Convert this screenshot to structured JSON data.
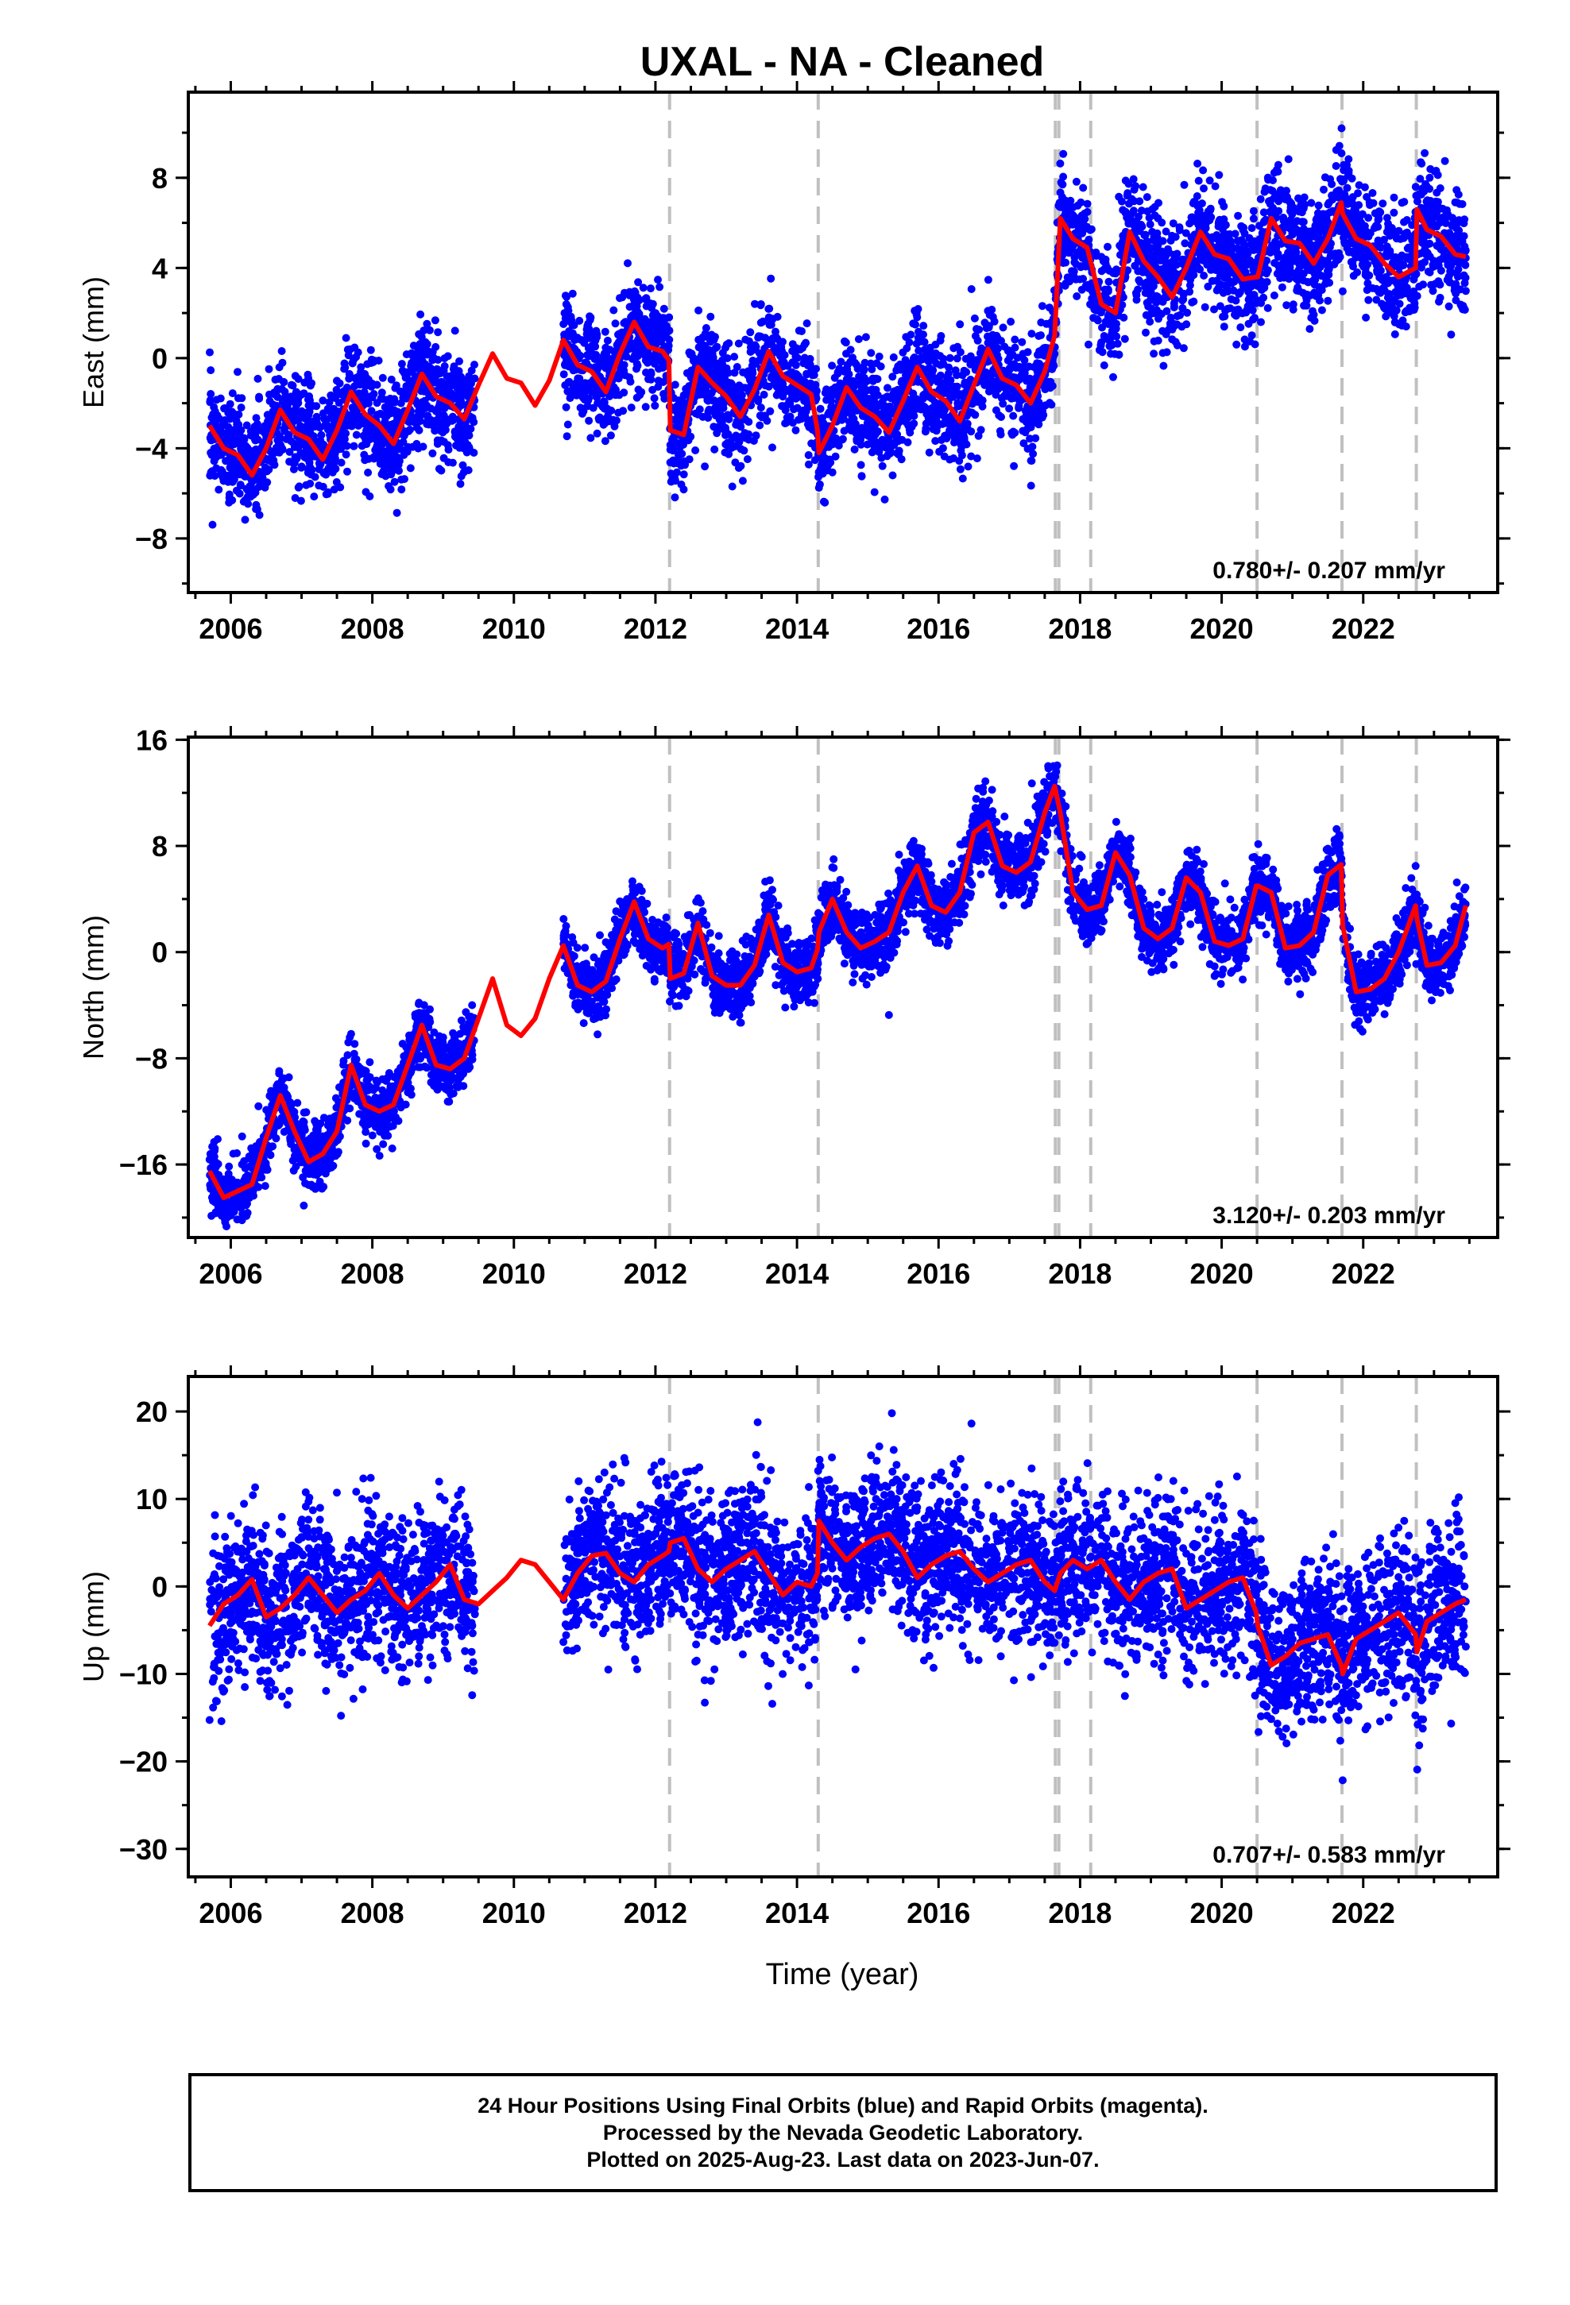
{
  "title": "UXAL  - NA - Cleaned",
  "xlabel": "Time (year)",
  "caption": [
    "24 Hour Positions Using Final Orbits (blue) and Rapid Orbits (magenta).",
    "Processed by the Nevada Geodetic Laboratory.",
    "Plotted on 2025-Aug-23. Last data on 2023-Jun-07."
  ],
  "colors": {
    "points": "#0000ff",
    "model": "#ff0000",
    "steps": "#c0c0c0",
    "axes": "#000000"
  },
  "chart_data": [
    {
      "type": "scatter",
      "ylabel": "East (mm)",
      "xlim": [
        2005.4,
        2023.9
      ],
      "ylim": [
        -10.4,
        11.8
      ],
      "xticks": [
        2006,
        2008,
        2010,
        2012,
        2014,
        2016,
        2018,
        2020,
        2022
      ],
      "yticks": [
        -8,
        -4,
        0,
        4,
        8
      ],
      "rate_label": "0.780+/- 0.207 mm/yr",
      "step_lines": [
        2012.2,
        2014.3,
        2017.65,
        2017.7,
        2018.15,
        2020.5,
        2021.7,
        2022.75
      ],
      "model_curve": {
        "name": "model",
        "x": [
          2005.7,
          2005.9,
          2006.1,
          2006.3,
          2006.5,
          2006.7,
          2006.9,
          2007.1,
          2007.3,
          2007.5,
          2007.7,
          2007.9,
          2008.1,
          2008.3,
          2008.5,
          2008.7,
          2008.9,
          2009.1,
          2009.3,
          2009.5,
          2009.7,
          2009.9,
          2010.1,
          2010.3,
          2010.5,
          2010.7,
          2010.9,
          2011.1,
          2011.3,
          2011.5,
          2011.7,
          2011.9,
          2012.1,
          2012.19,
          2012.21,
          2012.4,
          2012.6,
          2012.8,
          2013.0,
          2013.2,
          2013.4,
          2013.6,
          2013.8,
          2014.0,
          2014.2,
          2014.29,
          2014.31,
          2014.5,
          2014.7,
          2014.9,
          2015.1,
          2015.3,
          2015.5,
          2015.7,
          2015.9,
          2016.1,
          2016.3,
          2016.5,
          2016.7,
          2016.9,
          2017.1,
          2017.3,
          2017.5,
          2017.64,
          2017.72,
          2017.9,
          2018.1,
          2018.3,
          2018.5,
          2018.7,
          2018.9,
          2019.1,
          2019.3,
          2019.5,
          2019.7,
          2019.9,
          2020.1,
          2020.3,
          2020.49,
          2020.51,
          2020.7,
          2020.9,
          2021.1,
          2021.3,
          2021.5,
          2021.69,
          2021.71,
          2021.9,
          2022.1,
          2022.3,
          2022.5,
          2022.74,
          2022.76,
          2022.9,
          2023.1,
          2023.3,
          2023.45
        ],
        "y": [
          -3.0,
          -4.0,
          -4.3,
          -5.2,
          -4.0,
          -2.3,
          -3.3,
          -3.6,
          -4.5,
          -3.2,
          -1.5,
          -2.5,
          -3.0,
          -3.8,
          -2.3,
          -0.7,
          -1.7,
          -2.0,
          -2.7,
          -1.2,
          0.2,
          -0.9,
          -1.1,
          -2.1,
          -1.0,
          0.8,
          -0.3,
          -0.6,
          -1.5,
          0.2,
          1.6,
          0.5,
          0.3,
          -0.1,
          -3.2,
          -3.4,
          -0.4,
          -1.1,
          -1.7,
          -2.6,
          -1.4,
          0.3,
          -0.8,
          -1.2,
          -1.6,
          -3.2,
          -4.2,
          -3.0,
          -1.3,
          -2.2,
          -2.6,
          -3.3,
          -1.9,
          -0.4,
          -1.5,
          -1.9,
          -2.8,
          -1.2,
          0.4,
          -0.9,
          -1.2,
          -2.0,
          -0.6,
          1.0,
          6.2,
          5.3,
          4.9,
          2.4,
          2.0,
          5.6,
          4.3,
          3.6,
          2.7,
          4.0,
          5.6,
          4.6,
          4.4,
          3.5,
          3.6,
          3.6,
          6.2,
          5.2,
          5.1,
          4.2,
          5.3,
          6.9,
          6.4,
          5.3,
          5.0,
          4.2,
          3.6,
          4.0,
          6.6,
          5.7,
          5.4,
          4.6,
          4.5
        ]
      },
      "data_blocks": [
        {
          "x": [
            2005.7,
            2009.45
          ],
          "y_at_start": -3.6,
          "y_at_end": -1.3,
          "amplitude": 1.1,
          "spread": 1.2
        },
        {
          "x": [
            2010.7,
            2012.2
          ],
          "y_at_start": 0.0,
          "y_at_end": 0.6,
          "amplitude": 0.9,
          "spread": 1.2
        },
        {
          "x": [
            2012.2,
            2014.3
          ],
          "y_at_start": -2.0,
          "y_at_end": -1.3,
          "amplitude": 0.9,
          "spread": 1.2
        },
        {
          "x": [
            2014.3,
            2017.68
          ],
          "y_at_start": -2.5,
          "y_at_end": -0.3,
          "amplitude": 0.9,
          "spread": 1.2
        },
        {
          "x": [
            2017.68,
            2020.5
          ],
          "y_at_start": 3.9,
          "y_at_end": 4.2,
          "amplitude": 1.0,
          "spread": 1.3
        },
        {
          "x": [
            2020.5,
            2023.45
          ],
          "y_at_start": 4.8,
          "y_at_end": 5.2,
          "amplitude": 0.9,
          "spread": 1.3
        }
      ]
    },
    {
      "type": "scatter",
      "ylabel": "North (mm)",
      "xlim": [
        2005.4,
        2023.9
      ],
      "ylim": [
        -21.5,
        16.2
      ],
      "xticks": [
        2006,
        2008,
        2010,
        2012,
        2014,
        2016,
        2018,
        2020,
        2022
      ],
      "yticks": [
        -16,
        -8,
        0,
        8,
        16
      ],
      "rate_label": "3.120+/- 0.203 mm/yr",
      "step_lines": [
        2012.2,
        2014.3,
        2017.65,
        2017.7,
        2018.15,
        2020.5,
        2021.7,
        2022.75
      ],
      "model_curve": {
        "name": "model",
        "x": [
          2005.7,
          2005.9,
          2006.1,
          2006.3,
          2006.5,
          2006.7,
          2006.9,
          2007.1,
          2007.3,
          2007.5,
          2007.7,
          2007.9,
          2008.1,
          2008.3,
          2008.5,
          2008.7,
          2008.9,
          2009.1,
          2009.3,
          2009.5,
          2009.7,
          2009.9,
          2010.1,
          2010.3,
          2010.5,
          2010.7,
          2010.9,
          2011.1,
          2011.3,
          2011.5,
          2011.7,
          2011.9,
          2012.1,
          2012.19,
          2012.21,
          2012.4,
          2012.6,
          2012.8,
          2013.0,
          2013.2,
          2013.4,
          2013.6,
          2013.8,
          2014.0,
          2014.2,
          2014.29,
          2014.31,
          2014.5,
          2014.7,
          2014.9,
          2015.1,
          2015.3,
          2015.5,
          2015.7,
          2015.9,
          2016.1,
          2016.3,
          2016.5,
          2016.7,
          2016.9,
          2017.1,
          2017.3,
          2017.5,
          2017.64,
          2017.72,
          2017.9,
          2018.1,
          2018.3,
          2018.5,
          2018.7,
          2018.9,
          2019.1,
          2019.3,
          2019.5,
          2019.7,
          2019.9,
          2020.1,
          2020.3,
          2020.49,
          2020.51,
          2020.7,
          2020.9,
          2021.1,
          2021.3,
          2021.5,
          2021.69,
          2021.71,
          2021.9,
          2022.1,
          2022.3,
          2022.5,
          2022.74,
          2022.76,
          2022.9,
          2023.1,
          2023.3,
          2023.45
        ],
        "y": [
          -16.5,
          -18.5,
          -18.0,
          -17.5,
          -14.0,
          -10.8,
          -13.5,
          -15.8,
          -15.2,
          -13.5,
          -8.5,
          -11.5,
          -12.0,
          -11.5,
          -8.5,
          -5.5,
          -8.5,
          -8.8,
          -8.0,
          -5.0,
          -2.0,
          -5.5,
          -6.3,
          -5.0,
          -2.0,
          0.5,
          -2.5,
          -3.0,
          -2.2,
          1.0,
          3.8,
          1.0,
          0.3,
          0.6,
          -2.0,
          -1.6,
          2.2,
          -1.8,
          -2.5,
          -2.5,
          -1.0,
          2.8,
          -0.8,
          -1.5,
          -1.2,
          0.2,
          1.5,
          4.0,
          1.5,
          0.3,
          0.8,
          1.5,
          4.5,
          6.5,
          3.5,
          3.0,
          4.5,
          9.0,
          9.8,
          6.5,
          6.0,
          6.8,
          10.5,
          12.5,
          10.5,
          4.5,
          3.2,
          3.5,
          7.5,
          5.8,
          1.8,
          1.0,
          1.8,
          5.6,
          4.5,
          0.8,
          0.5,
          1.0,
          5.0,
          5.0,
          4.5,
          0.3,
          0.5,
          1.5,
          5.8,
          6.6,
          2.0,
          -3.0,
          -2.8,
          -2.0,
          0.0,
          3.5,
          2.5,
          -1.0,
          -0.8,
          0.5,
          3.5
        ]
      },
      "data_blocks": [
        {
          "x": [
            2005.7,
            2009.45
          ],
          "y_at_start": -17.2,
          "y_at_end": -6.4,
          "amplitude": 2.0,
          "spread": 1.2
        },
        {
          "x": [
            2010.7,
            2012.2
          ],
          "y_at_start": -1.5,
          "y_at_end": 0.4,
          "amplitude": 1.9,
          "spread": 1.2
        },
        {
          "x": [
            2012.2,
            2014.3
          ],
          "y_at_start": -1.0,
          "y_at_end": -0.4,
          "amplitude": 1.8,
          "spread": 1.2
        },
        {
          "x": [
            2014.3,
            2017.68
          ],
          "y_at_start": 0.4,
          "y_at_end": 8.0,
          "amplitude": 2.3,
          "spread": 1.3
        },
        {
          "x": [
            2017.68,
            2020.5
          ],
          "y_at_start": 4.5,
          "y_at_end": 2.0,
          "amplitude": 1.9,
          "spread": 1.2
        },
        {
          "x": [
            2020.5,
            2023.45
          ],
          "y_at_start": 2.0,
          "y_at_end": 0.5,
          "amplitude": 1.9,
          "spread": 1.3
        }
      ]
    },
    {
      "type": "scatter",
      "ylabel": "Up (mm)",
      "xlim": [
        2005.4,
        2023.9
      ],
      "ylim": [
        -33.2,
        24.0
      ],
      "xticks": [
        2006,
        2008,
        2010,
        2012,
        2014,
        2016,
        2018,
        2020,
        2022
      ],
      "yticks": [
        -30,
        -20,
        -10,
        0,
        10,
        20
      ],
      "rate_label": "0.707+/- 0.583 mm/yr",
      "step_lines": [
        2012.2,
        2014.3,
        2017.65,
        2017.7,
        2018.15,
        2020.5,
        2021.7,
        2022.75
      ],
      "model_curve": {
        "name": "model",
        "x": [
          2005.7,
          2005.9,
          2006.1,
          2006.3,
          2006.5,
          2006.7,
          2006.9,
          2007.1,
          2007.3,
          2007.5,
          2007.7,
          2007.9,
          2008.1,
          2008.3,
          2008.5,
          2008.7,
          2008.9,
          2009.1,
          2009.3,
          2009.5,
          2009.7,
          2009.9,
          2010.1,
          2010.3,
          2010.5,
          2010.7,
          2010.9,
          2011.1,
          2011.3,
          2011.5,
          2011.7,
          2011.9,
          2012.1,
          2012.19,
          2012.21,
          2012.4,
          2012.6,
          2012.8,
          2013.0,
          2013.2,
          2013.4,
          2013.6,
          2013.8,
          2014.0,
          2014.2,
          2014.29,
          2014.31,
          2014.5,
          2014.7,
          2014.9,
          2015.1,
          2015.3,
          2015.5,
          2015.7,
          2015.9,
          2016.1,
          2016.3,
          2016.5,
          2016.7,
          2016.9,
          2017.1,
          2017.3,
          2017.5,
          2017.64,
          2017.72,
          2017.9,
          2018.1,
          2018.3,
          2018.5,
          2018.7,
          2018.9,
          2019.1,
          2019.3,
          2019.5,
          2019.7,
          2019.9,
          2020.1,
          2020.3,
          2020.49,
          2020.51,
          2020.7,
          2020.9,
          2021.1,
          2021.3,
          2021.5,
          2021.69,
          2021.71,
          2021.9,
          2022.1,
          2022.3,
          2022.5,
          2022.74,
          2022.76,
          2022.9,
          2023.1,
          2023.3,
          2023.45
        ],
        "y": [
          -4.5,
          -2.0,
          -1.0,
          0.8,
          -3.5,
          -2.5,
          -1.0,
          1.0,
          -1.0,
          -3.0,
          -1.5,
          -0.5,
          1.5,
          -1.0,
          -2.5,
          -1.0,
          0.5,
          2.5,
          -1.5,
          -2.0,
          -0.5,
          1.0,
          3.0,
          2.5,
          0.5,
          -1.5,
          1.5,
          3.5,
          3.8,
          1.5,
          0.5,
          2.5,
          3.5,
          4.0,
          5.0,
          5.5,
          2.0,
          0.5,
          2.0,
          3.0,
          4.0,
          1.5,
          -1.0,
          0.5,
          0.0,
          1.5,
          7.5,
          5.0,
          3.0,
          4.5,
          5.5,
          6.0,
          4.0,
          1.0,
          2.5,
          3.5,
          4.0,
          2.0,
          0.5,
          1.5,
          2.5,
          3.0,
          0.5,
          -0.5,
          1.5,
          3.0,
          2.0,
          3.0,
          0.5,
          -1.5,
          0.5,
          1.5,
          2.0,
          -2.5,
          -1.5,
          -0.5,
          0.5,
          1.0,
          -3.0,
          -4.5,
          -9.0,
          -8.0,
          -6.5,
          -6.0,
          -5.5,
          -9.0,
          -10.0,
          -6.0,
          -5.0,
          -4.0,
          -3.0,
          -5.5,
          -7.5,
          -4.0,
          -3.0,
          -2.0,
          -1.5
        ]
      },
      "data_blocks": [
        {
          "x": [
            2005.7,
            2009.45
          ],
          "y_at_start": -1.5,
          "y_at_end": 1.5,
          "amplitude": 2.0,
          "spread": 4.3
        },
        {
          "x": [
            2010.7,
            2012.2
          ],
          "y_at_start": 1.0,
          "y_at_end": 2.5,
          "amplitude": 2.0,
          "spread": 4.3
        },
        {
          "x": [
            2012.2,
            2014.3
          ],
          "y_at_start": 3.5,
          "y_at_end": 0.5,
          "amplitude": 2.0,
          "spread": 4.3
        },
        {
          "x": [
            2014.3,
            2017.68
          ],
          "y_at_start": 4.5,
          "y_at_end": 1.5,
          "amplitude": 2.0,
          "spread": 4.3
        },
        {
          "x": [
            2017.68,
            2020.5
          ],
          "y_at_start": 2.0,
          "y_at_end": -1.0,
          "amplitude": 2.0,
          "spread": 4.3
        },
        {
          "x": [
            2020.5,
            2023.45
          ],
          "y_at_start": -7.0,
          "y_at_end": -2.0,
          "amplitude": 2.5,
          "spread": 4.6
        }
      ]
    }
  ]
}
